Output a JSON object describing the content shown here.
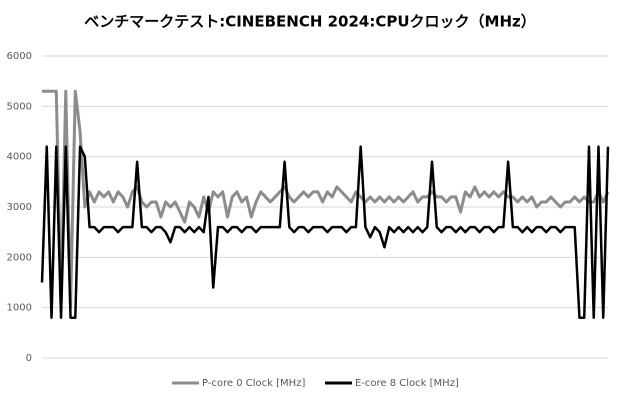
{
  "chart_data": {
    "type": "line",
    "title": "ベンチマークテスト:CINEBENCH 2024:CPUクロック（MHz）",
    "ylim": [
      0,
      6000
    ],
    "yticks": [
      0,
      1000,
      2000,
      3000,
      4000,
      5000,
      6000
    ],
    "grid": true,
    "legend": "bottom",
    "series": [
      {
        "name": "P-core 0 Clock [MHz]",
        "color": "#8c8c8c",
        "values": [
          5300,
          5300,
          5300,
          5300,
          1100,
          5300,
          1000,
          5300,
          4500,
          3000,
          3300,
          3100,
          3300,
          3200,
          3300,
          3100,
          3300,
          3200,
          3000,
          3300,
          3400,
          3100,
          3000,
          3100,
          3100,
          2800,
          3100,
          3000,
          3100,
          2900,
          2700,
          3100,
          3000,
          2800,
          3200,
          2900,
          3300,
          3200,
          3300,
          2800,
          3200,
          3300,
          3100,
          3200,
          2800,
          3100,
          3300,
          3200,
          3100,
          3200,
          3300,
          3400,
          3200,
          3100,
          3200,
          3300,
          3200,
          3300,
          3300,
          3100,
          3300,
          3200,
          3400,
          3300,
          3200,
          3100,
          3300,
          3200,
          3100,
          3200,
          3100,
          3200,
          3100,
          3200,
          3100,
          3200,
          3100,
          3200,
          3300,
          3100,
          3200,
          3200,
          3300,
          3200,
          3200,
          3100,
          3200,
          3200,
          2900,
          3300,
          3200,
          3400,
          3200,
          3300,
          3200,
          3300,
          3200,
          3300,
          3200,
          3200,
          3100,
          3200,
          3100,
          3200,
          3000,
          3100,
          3100,
          3200,
          3100,
          3000,
          3100,
          3100,
          3200,
          3100,
          3200,
          3100,
          3100,
          3300,
          3100,
          3300
        ]
      },
      {
        "name": "E-core 8 Clock [MHz]",
        "color": "#000000",
        "values": [
          1500,
          4200,
          800,
          4200,
          800,
          4200,
          800,
          800,
          4200,
          4000,
          2600,
          2600,
          2500,
          2600,
          2600,
          2600,
          2500,
          2600,
          2600,
          2600,
          3900,
          2600,
          2600,
          2500,
          2600,
          2600,
          2500,
          2300,
          2600,
          2600,
          2500,
          2600,
          2500,
          2600,
          2500,
          3200,
          1400,
          2600,
          2600,
          2500,
          2600,
          2600,
          2500,
          2600,
          2600,
          2500,
          2600,
          2600,
          2600,
          2600,
          2600,
          3900,
          2600,
          2500,
          2600,
          2600,
          2500,
          2600,
          2600,
          2600,
          2500,
          2600,
          2600,
          2600,
          2500,
          2600,
          2600,
          4200,
          2600,
          2400,
          2600,
          2500,
          2200,
          2600,
          2500,
          2600,
          2500,
          2600,
          2500,
          2600,
          2500,
          2600,
          3900,
          2600,
          2500,
          2600,
          2600,
          2500,
          2600,
          2500,
          2600,
          2600,
          2500,
          2600,
          2600,
          2500,
          2600,
          2600,
          3900,
          2600,
          2600,
          2500,
          2600,
          2500,
          2600,
          2600,
          2500,
          2600,
          2600,
          2500,
          2600,
          2600,
          2600,
          800,
          800,
          4200,
          800,
          4200,
          800,
          4200
        ]
      }
    ]
  }
}
